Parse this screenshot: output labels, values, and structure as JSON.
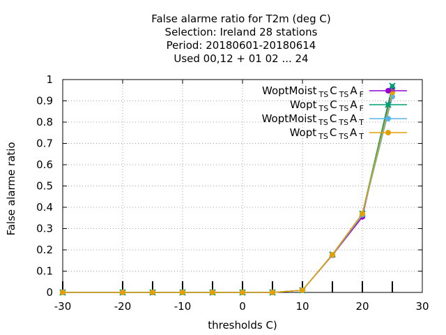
{
  "chart_data": {
    "type": "line",
    "title": [
      "False alarme ratio  for T2m (deg C)",
      "Selection: Ireland      28 stations",
      "Period: 20180601-20180614",
      "Used  00,12  + 01 02 ... 24"
    ],
    "xlabel": "thresholds C)",
    "ylabel": "False alarme ratio",
    "xlim": [
      -30,
      30
    ],
    "ylim": [
      0,
      1
    ],
    "xticks": [
      -30,
      -20,
      -10,
      0,
      10,
      20,
      30
    ],
    "yticks": [
      0,
      0.1,
      0.2,
      0.3,
      0.4,
      0.5,
      0.6,
      0.7,
      0.8,
      0.9,
      1
    ],
    "xtick_labels": [
      "-30",
      "-20",
      "-10",
      "0",
      "10",
      "20",
      "30"
    ],
    "ytick_labels": [
      "0",
      "0.1",
      "0.2",
      "0.3",
      "0.4",
      "0.5",
      "0.6",
      "0.7",
      "0.8",
      "0.9",
      "1"
    ],
    "grid": true,
    "legend_position": "top-right",
    "x": [
      -30,
      -20,
      -15,
      -10,
      -5,
      0,
      5,
      10,
      15,
      20,
      25
    ],
    "sample_size_marks_x": [
      -30,
      -20,
      -15,
      -10,
      -5,
      0,
      5,
      10,
      15,
      20,
      25
    ],
    "series": [
      {
        "name": "WoptMoist",
        "name_sub": "TS",
        "name_mid": "C",
        "name_sub2": "TS",
        "name_tail": "A",
        "name_sub3": "F",
        "color": "#9400d3",
        "marker": "circle",
        "values": [
          0,
          0,
          0,
          0,
          0,
          0,
          0,
          0.01,
          0.175,
          0.355,
          0.96
        ]
      },
      {
        "name": "Wopt",
        "name_sub": "TS",
        "name_mid": "C",
        "name_sub2": "TS",
        "name_tail": "A",
        "name_sub3": "F",
        "color": "#009e73",
        "marker": "cross",
        "values": [
          0,
          0,
          0,
          0,
          0,
          0,
          0,
          0.01,
          0.178,
          0.37,
          0.97
        ]
      },
      {
        "name": "WoptMoist",
        "name_sub": "TS",
        "name_mid": "C",
        "name_sub2": "TS",
        "name_tail": "A",
        "name_sub3": "T",
        "color": "#56b4e9",
        "marker": "circle",
        "values": [
          0,
          0,
          0,
          0,
          0,
          0,
          0,
          0.01,
          0.176,
          0.365,
          0.92
        ]
      },
      {
        "name": "Wopt",
        "name_sub": "TS",
        "name_mid": "C",
        "name_sub2": "TS",
        "name_tail": "A",
        "name_sub3": "T",
        "color": "#e69f00",
        "marker": "circle",
        "values": [
          0,
          0,
          0,
          0,
          0,
          0,
          0,
          0.01,
          0.177,
          0.37,
          0.94
        ]
      }
    ]
  }
}
